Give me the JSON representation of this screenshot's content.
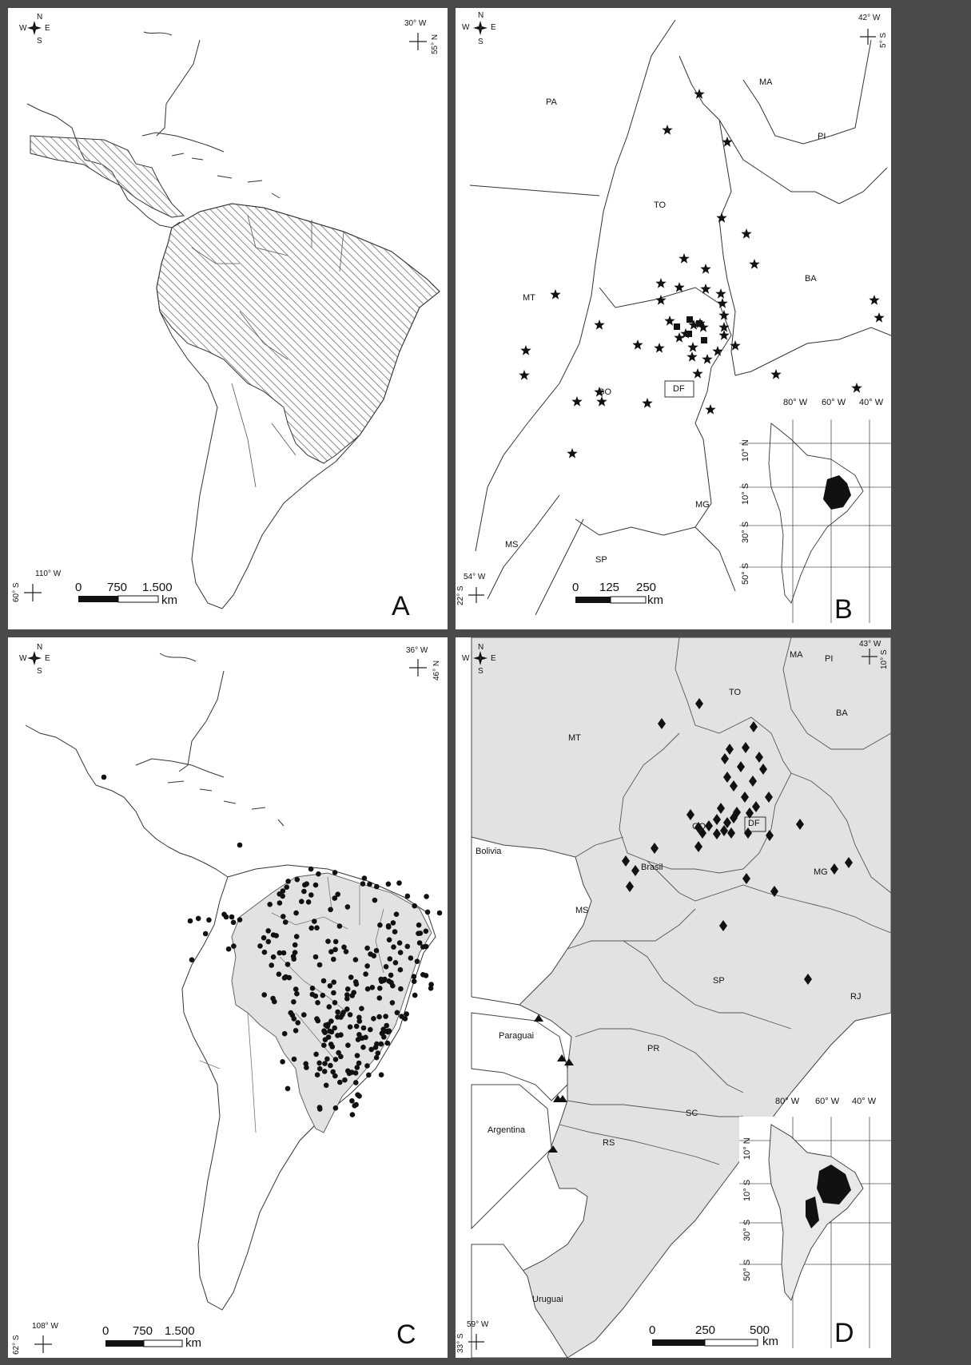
{
  "panels": {
    "a": {
      "letter": "A",
      "compass": {
        "n": "N",
        "s": "S",
        "e": "E",
        "w": "W"
      },
      "coord_top_lon": "30° W",
      "coord_top_lat": "55° N",
      "coord_bottom_lon": "110° W",
      "coord_bottom_lat": "60° S",
      "scale": {
        "n0": "0",
        "n1": "750",
        "n2": "1.500",
        "unit": "km"
      }
    },
    "b": {
      "letter": "B",
      "compass": {
        "n": "N",
        "s": "S",
        "e": "E",
        "w": "W"
      },
      "coord_top_lon": "42° W",
      "coord_top_lat": "5° S",
      "coord_bottom_lon": "54° W",
      "coord_bottom_lat": "22° S",
      "scale": {
        "n0": "0",
        "n1": "125",
        "n2": "250",
        "unit": "km"
      },
      "states": [
        "PA",
        "MA",
        "PI",
        "TO",
        "BA",
        "MT",
        "GO",
        "DF",
        "MG",
        "MS",
        "SP"
      ],
      "inset": {
        "lon": [
          "80° W",
          "60° W",
          "40° W"
        ],
        "lat": [
          "10° N",
          "10° S",
          "30° S",
          "50° S"
        ]
      }
    },
    "c": {
      "letter": "C",
      "compass": {
        "n": "N",
        "s": "S",
        "e": "E",
        "w": "W"
      },
      "coord_top_lon": "36° W",
      "coord_top_lat": "46° N",
      "coord_bottom_lon": "108° W",
      "coord_bottom_lat": "62° S",
      "scale": {
        "n0": "0",
        "n1": "750",
        "n2": "1.500",
        "unit": "km"
      }
    },
    "d": {
      "letter": "D",
      "compass": {
        "n": "N",
        "s": "S",
        "e": "E",
        "w": "W"
      },
      "coord_top_lon": "43° W",
      "coord_top_lat": "10° S",
      "coord_bottom_lon": "59° W",
      "coord_bottom_lat": "33° S",
      "scale": {
        "n0": "0",
        "n1": "250",
        "n2": "500",
        "unit": "km"
      },
      "states": [
        "MA",
        "PI",
        "TO",
        "BA",
        "MT",
        "GO",
        "DF",
        "Bolivia",
        "Brasil",
        "MG",
        "MS",
        "SP",
        "RJ",
        "Paraguai",
        "PR",
        "SC",
        "Argentina",
        "RS",
        "Uruguai"
      ],
      "inset": {
        "lon": [
          "80° W",
          "60° W",
          "40° W"
        ],
        "lat": [
          "10° N",
          "10° S",
          "30° S",
          "50° S"
        ]
      }
    }
  },
  "colors": {
    "frame": "#4a4a4a",
    "land_line": "#333333",
    "range_hatch": "#888888",
    "brazil_fill": "#e2e2e2",
    "marker": "#111111"
  },
  "markers": {
    "panel_b_stars": 52,
    "panel_b_squares": 5,
    "panel_c_dots": 260,
    "panel_d_diamonds": 62,
    "panel_d_triangles": 6
  }
}
